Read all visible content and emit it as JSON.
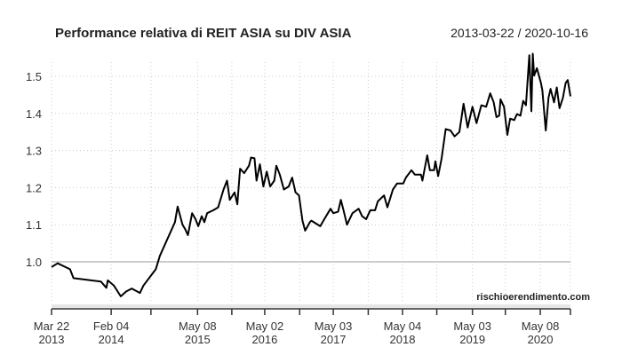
{
  "chart_data": {
    "type": "line",
    "title": "Performance relativa di REIT ASIA su DIV ASIA",
    "date_range": "2013-03-22 / 2020-10-16",
    "credit": "rischioerendimento.com",
    "xlabel": "",
    "ylabel": "",
    "xlim": [
      2013.22,
      2020.79
    ],
    "ylim": [
      0.87,
      1.57
    ],
    "baseline": 1.0,
    "grid": true,
    "y_ticks": [
      1.0,
      1.1,
      1.2,
      1.3,
      1.4,
      1.5
    ],
    "y_tick_labels": [
      "1.0",
      "1.1",
      "1.2",
      "1.3",
      "1.4",
      "1.5"
    ],
    "x_ticks": [
      2013.22,
      2014.09,
      2014.67,
      2015.35,
      2015.85,
      2016.33,
      2016.84,
      2017.33,
      2017.84,
      2018.34,
      2018.84,
      2019.36,
      2019.84,
      2020.35,
      2020.79
    ],
    "x_tick_labels": [
      {
        "at": 2013.22,
        "line1": "Mar 22",
        "line2": "2013"
      },
      {
        "at": 2014.09,
        "line1": "Feb 04",
        "line2": "2014"
      },
      {
        "at": 2015.35,
        "line1": "May 08",
        "line2": "2015"
      },
      {
        "at": 2016.33,
        "line1": "May 02",
        "line2": "2016"
      },
      {
        "at": 2017.33,
        "line1": "May 03",
        "line2": "2017"
      },
      {
        "at": 2018.34,
        "line1": "May 04",
        "line2": "2018"
      },
      {
        "at": 2019.36,
        "line1": "May 03",
        "line2": "2019"
      },
      {
        "at": 2020.35,
        "line1": "May 08",
        "line2": "2020"
      }
    ],
    "series": [
      {
        "name": "REIT ASIA / DIV ASIA",
        "color": "#000000",
        "x": [
          2013.22,
          2013.31,
          2013.49,
          2013.54,
          2013.94,
          2014.02,
          2014.04,
          2014.13,
          2014.23,
          2014.31,
          2014.39,
          2014.51,
          2014.56,
          2014.67,
          2014.74,
          2014.8,
          2015.02,
          2015.06,
          2015.13,
          2015.17,
          2015.21,
          2015.27,
          2015.32,
          2015.36,
          2015.41,
          2015.45,
          2015.49,
          2015.58,
          2015.65,
          2015.73,
          2015.78,
          2015.82,
          2015.89,
          2015.93,
          2015.97,
          2016.03,
          2016.1,
          2016.13,
          2016.18,
          2016.21,
          2016.26,
          2016.31,
          2016.36,
          2016.41,
          2016.47,
          2016.5,
          2016.55,
          2016.61,
          2016.68,
          2016.73,
          2016.78,
          2016.83,
          2016.88,
          2016.92,
          2016.99,
          2017.01,
          2017.14,
          2017.2,
          2017.29,
          2017.33,
          2017.4,
          2017.44,
          2017.48,
          2017.53,
          2017.61,
          2017.7,
          2017.75,
          2017.81,
          2017.87,
          2017.94,
          2017.98,
          2018.07,
          2018.12,
          2018.2,
          2018.26,
          2018.35,
          2018.39,
          2018.47,
          2018.52,
          2018.61,
          2018.63,
          2018.7,
          2018.74,
          2018.8,
          2018.82,
          2018.86,
          2018.91,
          2018.97,
          2019.04,
          2019.1,
          2019.17,
          2019.23,
          2019.29,
          2019.36,
          2019.42,
          2019.49,
          2019.56,
          2019.62,
          2019.67,
          2019.71,
          2019.75,
          2019.77,
          2019.82,
          2019.87,
          2019.91,
          2019.97,
          2020.01,
          2020.06,
          2020.1,
          2020.14,
          2020.19,
          2020.22,
          2020.24,
          2020.26,
          2020.3,
          2020.36,
          2020.38,
          2020.43,
          2020.47,
          2020.5,
          2020.55,
          2020.59,
          2020.63,
          2020.68,
          2020.72,
          2020.75,
          2020.79
        ],
        "values": [
          0.986,
          0.996,
          0.98,
          0.956,
          0.947,
          0.93,
          0.95,
          0.936,
          0.907,
          0.92,
          0.928,
          0.916,
          0.936,
          0.963,
          0.98,
          1.016,
          1.107,
          1.149,
          1.1,
          1.088,
          1.072,
          1.131,
          1.115,
          1.096,
          1.123,
          1.107,
          1.131,
          1.139,
          1.147,
          1.195,
          1.219,
          1.167,
          1.187,
          1.155,
          1.251,
          1.239,
          1.259,
          1.281,
          1.279,
          1.219,
          1.263,
          1.203,
          1.243,
          1.203,
          1.219,
          1.259,
          1.235,
          1.195,
          1.203,
          1.227,
          1.187,
          1.179,
          1.111,
          1.084,
          1.107,
          1.111,
          1.096,
          1.115,
          1.143,
          1.131,
          1.135,
          1.167,
          1.139,
          1.1,
          1.131,
          1.143,
          1.123,
          1.115,
          1.139,
          1.139,
          1.163,
          1.179,
          1.147,
          1.195,
          1.211,
          1.211,
          1.227,
          1.247,
          1.235,
          1.235,
          1.219,
          1.287,
          1.247,
          1.247,
          1.271,
          1.231,
          1.279,
          1.358,
          1.354,
          1.338,
          1.35,
          1.426,
          1.362,
          1.418,
          1.374,
          1.422,
          1.418,
          1.454,
          1.43,
          1.39,
          1.394,
          1.438,
          1.418,
          1.342,
          1.386,
          1.382,
          1.398,
          1.394,
          1.434,
          1.422,
          1.557,
          1.406,
          1.561,
          1.502,
          1.522,
          1.482,
          1.462,
          1.354,
          1.442,
          1.466,
          1.43,
          1.47,
          1.414,
          1.442,
          1.482,
          1.49,
          1.446
        ]
      }
    ]
  }
}
